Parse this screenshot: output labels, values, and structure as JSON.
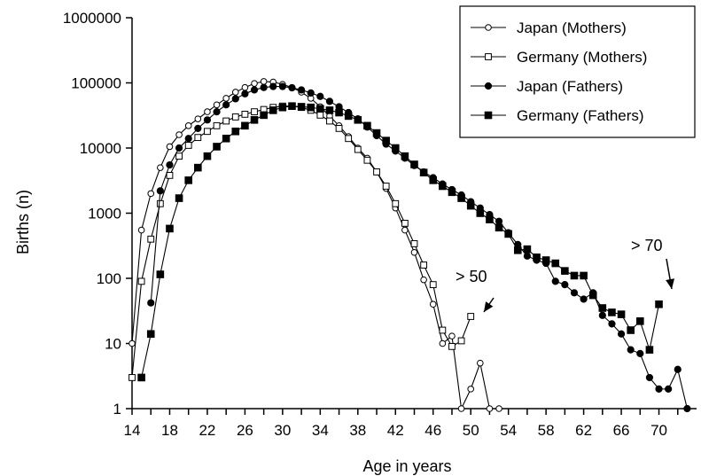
{
  "chart_data": {
    "type": "line",
    "xlabel": "Age in years",
    "ylabel": "Births (n)",
    "y_scale": "log",
    "xlim": [
      14,
      74
    ],
    "ylim": [
      1,
      1000000
    ],
    "x_ticks": [
      "14",
      "18",
      "22",
      "26",
      "30",
      "34",
      "38",
      "42",
      "46",
      "50",
      "54",
      "58",
      "62",
      "66",
      "70"
    ],
    "y_ticks": [
      "1",
      "10",
      "100",
      "1000",
      "10000",
      "100000",
      "1000000"
    ],
    "legend_position": "top-right",
    "series": [
      {
        "name": "Japan (Mothers)",
        "marker": "open-circle",
        "x": [
          14,
          15,
          16,
          17,
          18,
          19,
          20,
          21,
          22,
          23,
          24,
          25,
          26,
          27,
          28,
          29,
          30,
          31,
          32,
          33,
          34,
          35,
          36,
          37,
          38,
          39,
          40,
          41,
          42,
          43,
          44,
          45,
          46,
          47,
          48,
          49,
          50,
          51,
          52,
          53
        ],
        "y": [
          10,
          550,
          2000,
          5000,
          10500,
          16000,
          22000,
          28000,
          36000,
          46000,
          58000,
          72000,
          85000,
          98000,
          105000,
          103000,
          95000,
          85000,
          72000,
          58000,
          43000,
          31000,
          22000,
          15000,
          10000,
          7000,
          4300,
          2400,
          1200,
          550,
          250,
          95,
          40,
          10,
          13,
          1,
          2,
          5,
          1,
          1
        ]
      },
      {
        "name": "Germany (Mothers)",
        "marker": "open-square",
        "x": [
          14,
          15,
          16,
          17,
          18,
          19,
          20,
          21,
          22,
          23,
          24,
          25,
          26,
          27,
          28,
          29,
          30,
          31,
          32,
          33,
          34,
          35,
          36,
          37,
          38,
          39,
          40,
          41,
          42,
          43,
          44,
          45,
          46,
          47,
          48,
          49,
          50
        ],
        "y": [
          3,
          90,
          400,
          1400,
          3800,
          7500,
          11000,
          14500,
          18000,
          22000,
          26000,
          30000,
          33000,
          36000,
          39000,
          42000,
          44000,
          44000,
          42000,
          38000,
          32000,
          26000,
          20000,
          14000,
          9500,
          6500,
          4300,
          2600,
          1400,
          700,
          340,
          160,
          80,
          16,
          9,
          11,
          26
        ]
      },
      {
        "name": "Japan (Fathers)",
        "marker": "filled-circle",
        "x": [
          16,
          17,
          18,
          19,
          20,
          21,
          22,
          23,
          24,
          25,
          26,
          27,
          28,
          29,
          30,
          31,
          32,
          33,
          34,
          35,
          36,
          37,
          38,
          39,
          40,
          41,
          42,
          43,
          44,
          45,
          46,
          47,
          48,
          49,
          50,
          51,
          52,
          53,
          54,
          55,
          56,
          57,
          58,
          59,
          60,
          61,
          62,
          63,
          64,
          65,
          66,
          67,
          68,
          69,
          70,
          71,
          72,
          73
        ],
        "y": [
          42,
          2200,
          5500,
          10000,
          14000,
          20000,
          27000,
          36000,
          46000,
          57000,
          68000,
          78000,
          85000,
          88000,
          88000,
          84000,
          78000,
          70000,
          62000,
          52000,
          43000,
          35000,
          28000,
          21000,
          15500,
          11500,
          9000,
          7000,
          5400,
          4300,
          3500,
          2800,
          2300,
          1900,
          1500,
          1200,
          950,
          750,
          500,
          330,
          220,
          190,
          170,
          90,
          80,
          60,
          48,
          60,
          27,
          20,
          14,
          8,
          7,
          3,
          2,
          2,
          4,
          1
        ]
      },
      {
        "name": "Germany (Fathers)",
        "marker": "filled-square",
        "x": [
          15,
          16,
          17,
          18,
          19,
          20,
          21,
          22,
          23,
          24,
          25,
          26,
          27,
          28,
          29,
          30,
          31,
          32,
          33,
          34,
          35,
          36,
          37,
          38,
          39,
          40,
          41,
          42,
          43,
          44,
          45,
          46,
          47,
          48,
          49,
          50,
          51,
          52,
          53,
          54,
          55,
          56,
          57,
          58,
          59,
          60,
          61,
          62,
          63,
          64,
          65,
          66,
          67,
          68,
          69,
          70
        ],
        "y": [
          3,
          14,
          115,
          580,
          1700,
          3200,
          5000,
          7500,
          10500,
          14000,
          18000,
          22000,
          27000,
          32000,
          38000,
          42000,
          44000,
          43000,
          42000,
          40000,
          38000,
          35000,
          31000,
          27000,
          22000,
          17000,
          13000,
          10000,
          7500,
          5600,
          4200,
          3200,
          2600,
          2100,
          1700,
          1300,
          1000,
          800,
          600,
          480,
          270,
          280,
          210,
          190,
          170,
          130,
          110,
          110,
          55,
          35,
          30,
          28,
          16,
          22,
          8,
          40
        ]
      }
    ],
    "annotations": [
      {
        "text": "> 50",
        "x": 50.5,
        "y": 26
      },
      {
        "text": "> 70",
        "x": 70.5,
        "y": 40
      }
    ]
  }
}
